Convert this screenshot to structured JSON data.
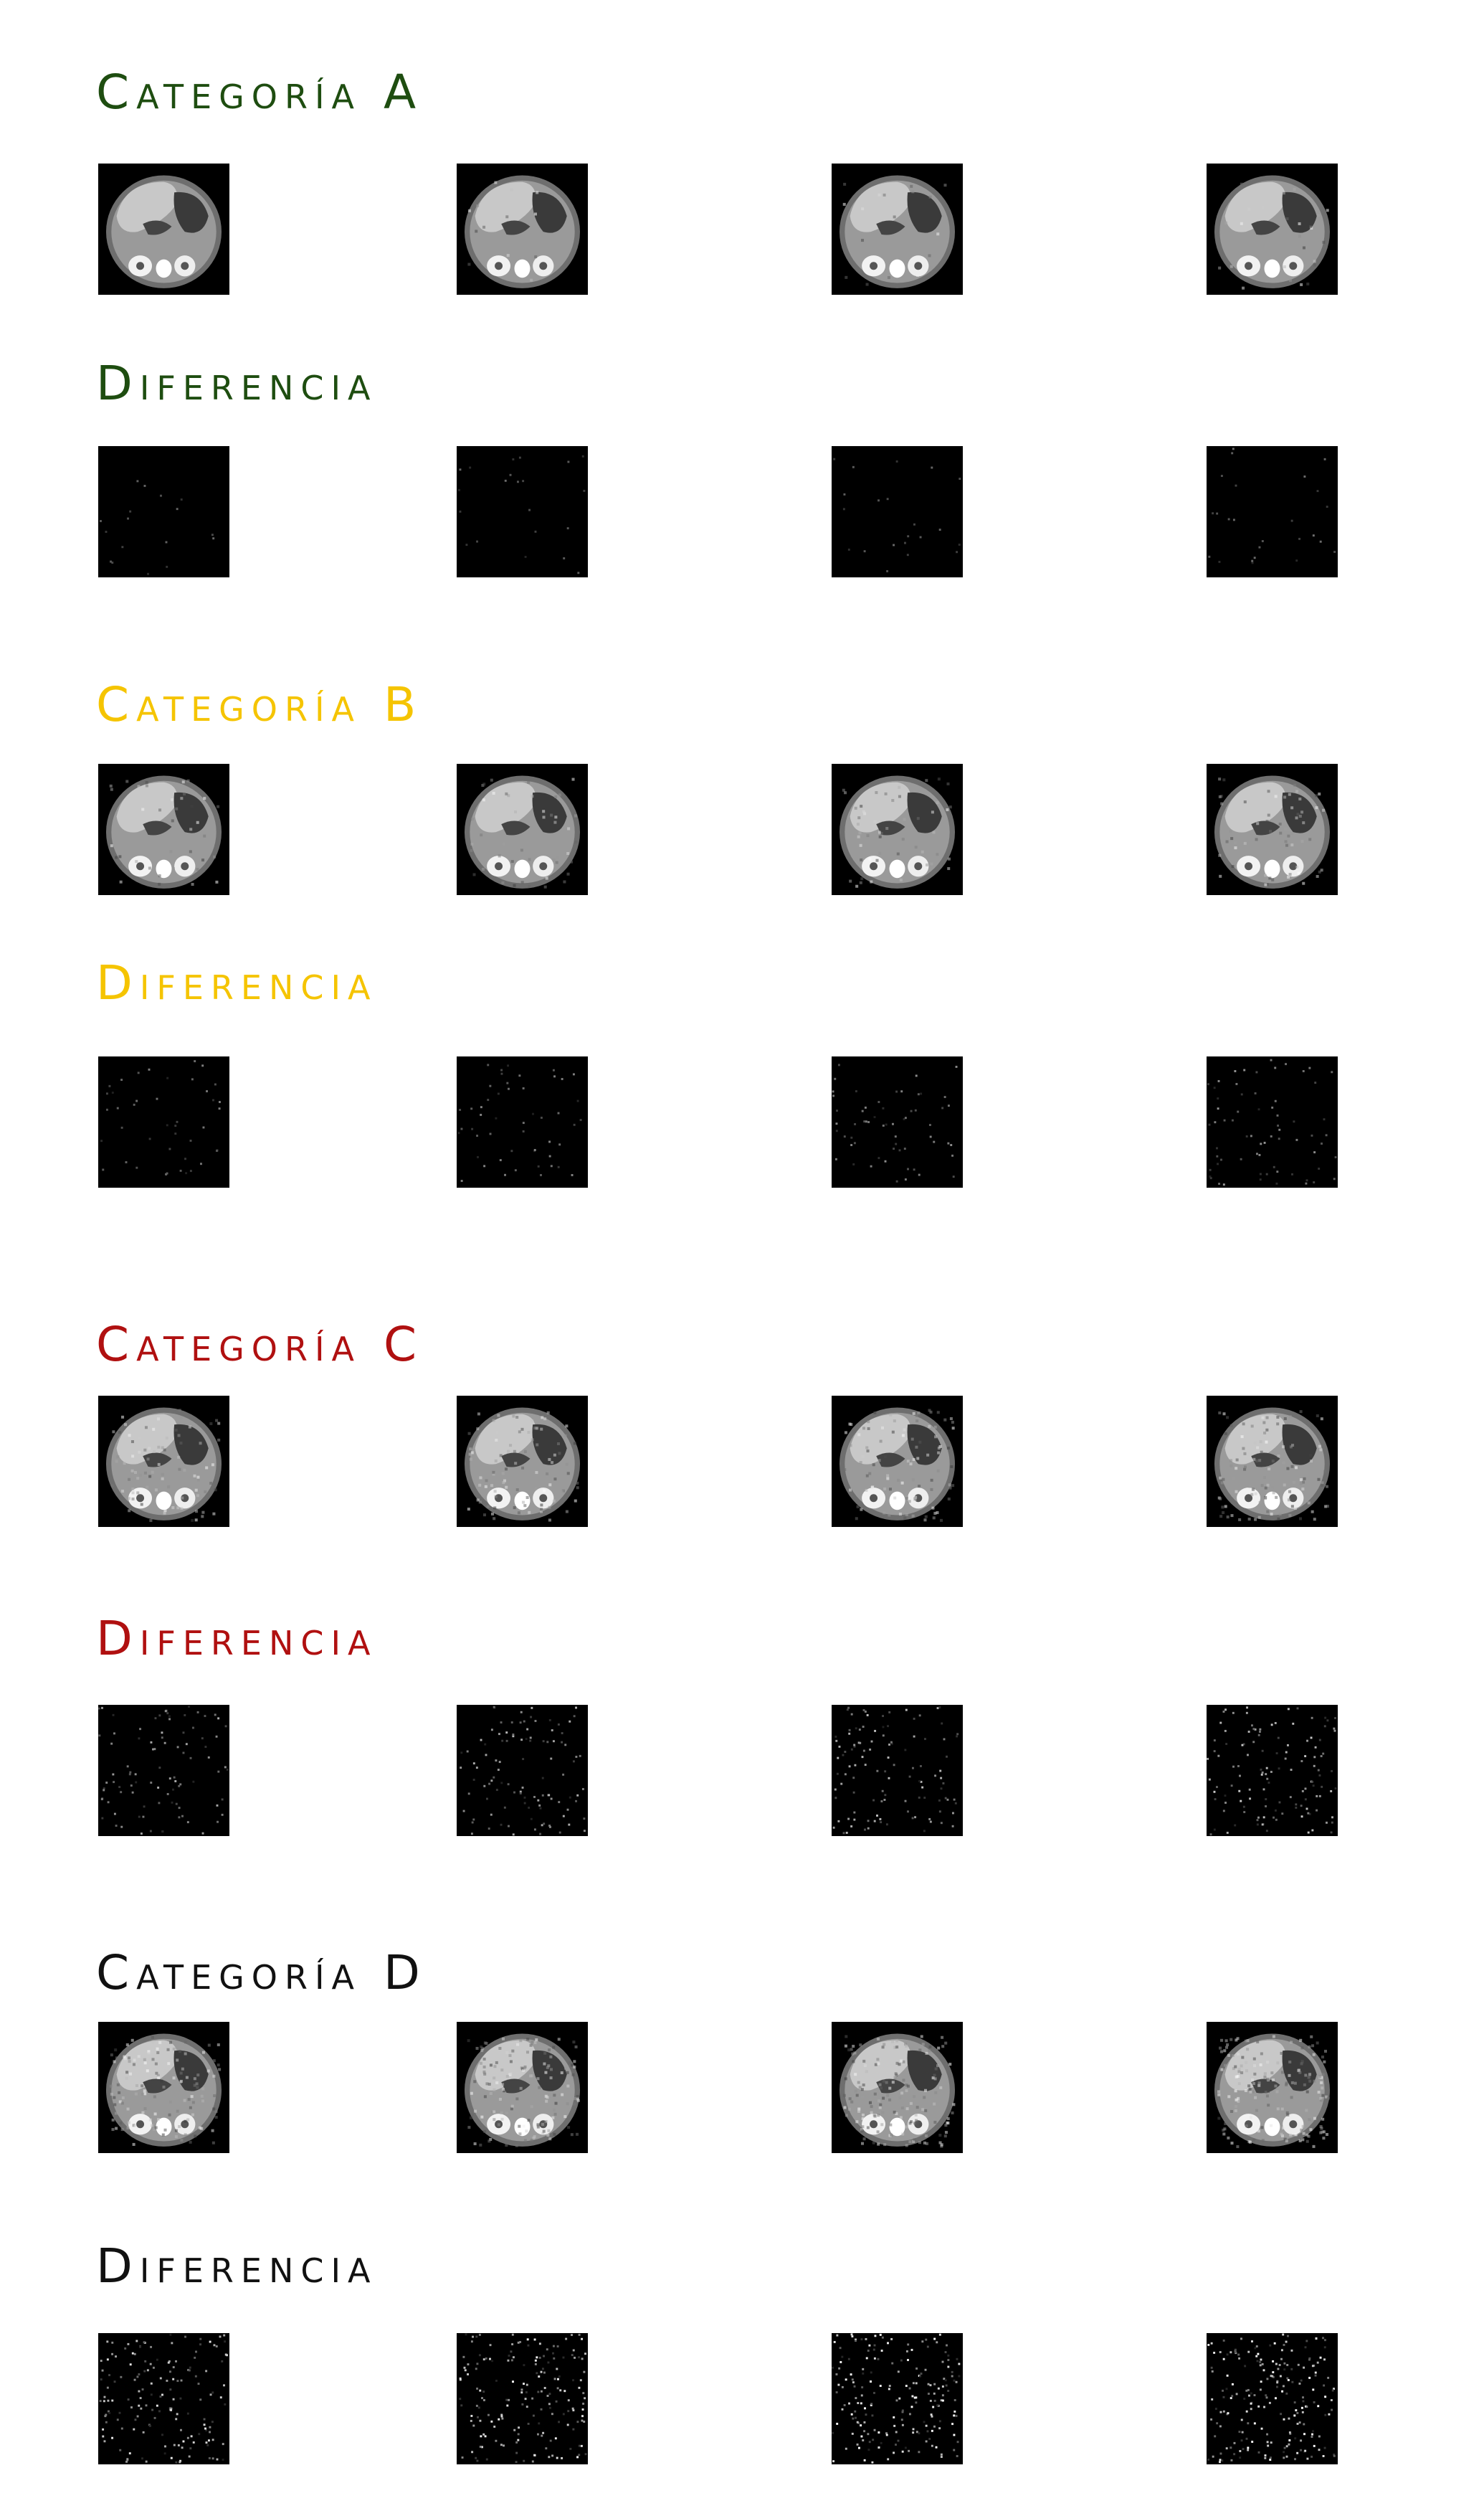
{
  "sections": [
    {
      "id": "A",
      "color": "#1e4d10",
      "category_title": "Categoría A",
      "difference_title": "Diferencia",
      "scan_images": [
        {
          "description": "Grayscale axial CT abdominal slice, original",
          "noise": 0.0
        },
        {
          "description": "Grayscale axial CT abdominal slice, compressed",
          "noise": 0.05
        },
        {
          "description": "Grayscale axial CT abdominal slice, compressed",
          "noise": 0.07
        },
        {
          "description": "Grayscale axial CT abdominal slice, compressed",
          "noise": 0.1
        }
      ],
      "difference_images": [
        {
          "description": "Difference image, nearly black",
          "noise": 0.04
        },
        {
          "description": "Difference image, nearly black",
          "noise": 0.05
        },
        {
          "description": "Difference image, nearly black",
          "noise": 0.05
        },
        {
          "description": "Difference image, nearly black",
          "noise": 0.06
        }
      ]
    },
    {
      "id": "B",
      "color": "#f5c400",
      "category_title": "Categoría B",
      "difference_title": "Diferencia",
      "scan_images": [
        {
          "description": "Grayscale axial CT abdominal slice",
          "noise": 0.15
        },
        {
          "description": "Grayscale axial CT abdominal slice",
          "noise": 0.18
        },
        {
          "description": "Grayscale axial CT abdominal slice",
          "noise": 0.2
        },
        {
          "description": "Grayscale axial CT abdominal slice",
          "noise": 0.24
        }
      ],
      "difference_images": [
        {
          "description": "Difference image, sparse speckle",
          "noise": 0.1
        },
        {
          "description": "Difference image, sparse speckle",
          "noise": 0.12
        },
        {
          "description": "Difference image, sparse speckle",
          "noise": 0.14
        },
        {
          "description": "Difference image, sparse speckle",
          "noise": 0.16
        }
      ]
    },
    {
      "id": "C",
      "color": "#b01010",
      "category_title": "Categoría C",
      "difference_title": "Diferencia",
      "scan_images": [
        {
          "description": "Grayscale axial CT abdominal slice, degraded",
          "noise": 0.32
        },
        {
          "description": "Grayscale axial CT abdominal slice, degraded",
          "noise": 0.35
        },
        {
          "description": "Grayscale axial CT abdominal slice, degraded",
          "noise": 0.38
        },
        {
          "description": "Grayscale axial CT abdominal slice, degraded",
          "noise": 0.42
        }
      ],
      "difference_images": [
        {
          "description": "Difference image, visible speckle",
          "noise": 0.22
        },
        {
          "description": "Difference image, visible speckle",
          "noise": 0.25
        },
        {
          "description": "Difference image, visible speckle",
          "noise": 0.27
        },
        {
          "description": "Difference image, visible speckle",
          "noise": 0.3
        }
      ]
    },
    {
      "id": "D",
      "color": "#111111",
      "category_title": "Categoría D",
      "difference_title": "Diferencia",
      "scan_images": [
        {
          "description": "Grayscale axial CT abdominal slice, heavily degraded",
          "noise": 0.5
        },
        {
          "description": "Grayscale axial CT abdominal slice, heavily degraded",
          "noise": 0.55
        },
        {
          "description": "Grayscale axial CT abdominal slice, heavily degraded",
          "noise": 0.6
        },
        {
          "description": "Grayscale axial CT abdominal slice, heavily degraded",
          "noise": 0.65
        }
      ],
      "difference_images": [
        {
          "description": "Difference image, dense speckle",
          "noise": 0.38
        },
        {
          "description": "Difference image, dense speckle",
          "noise": 0.42
        },
        {
          "description": "Difference image, dense speckle",
          "noise": 0.46
        },
        {
          "description": "Difference image, dense speckle",
          "noise": 0.5
        }
      ]
    }
  ]
}
